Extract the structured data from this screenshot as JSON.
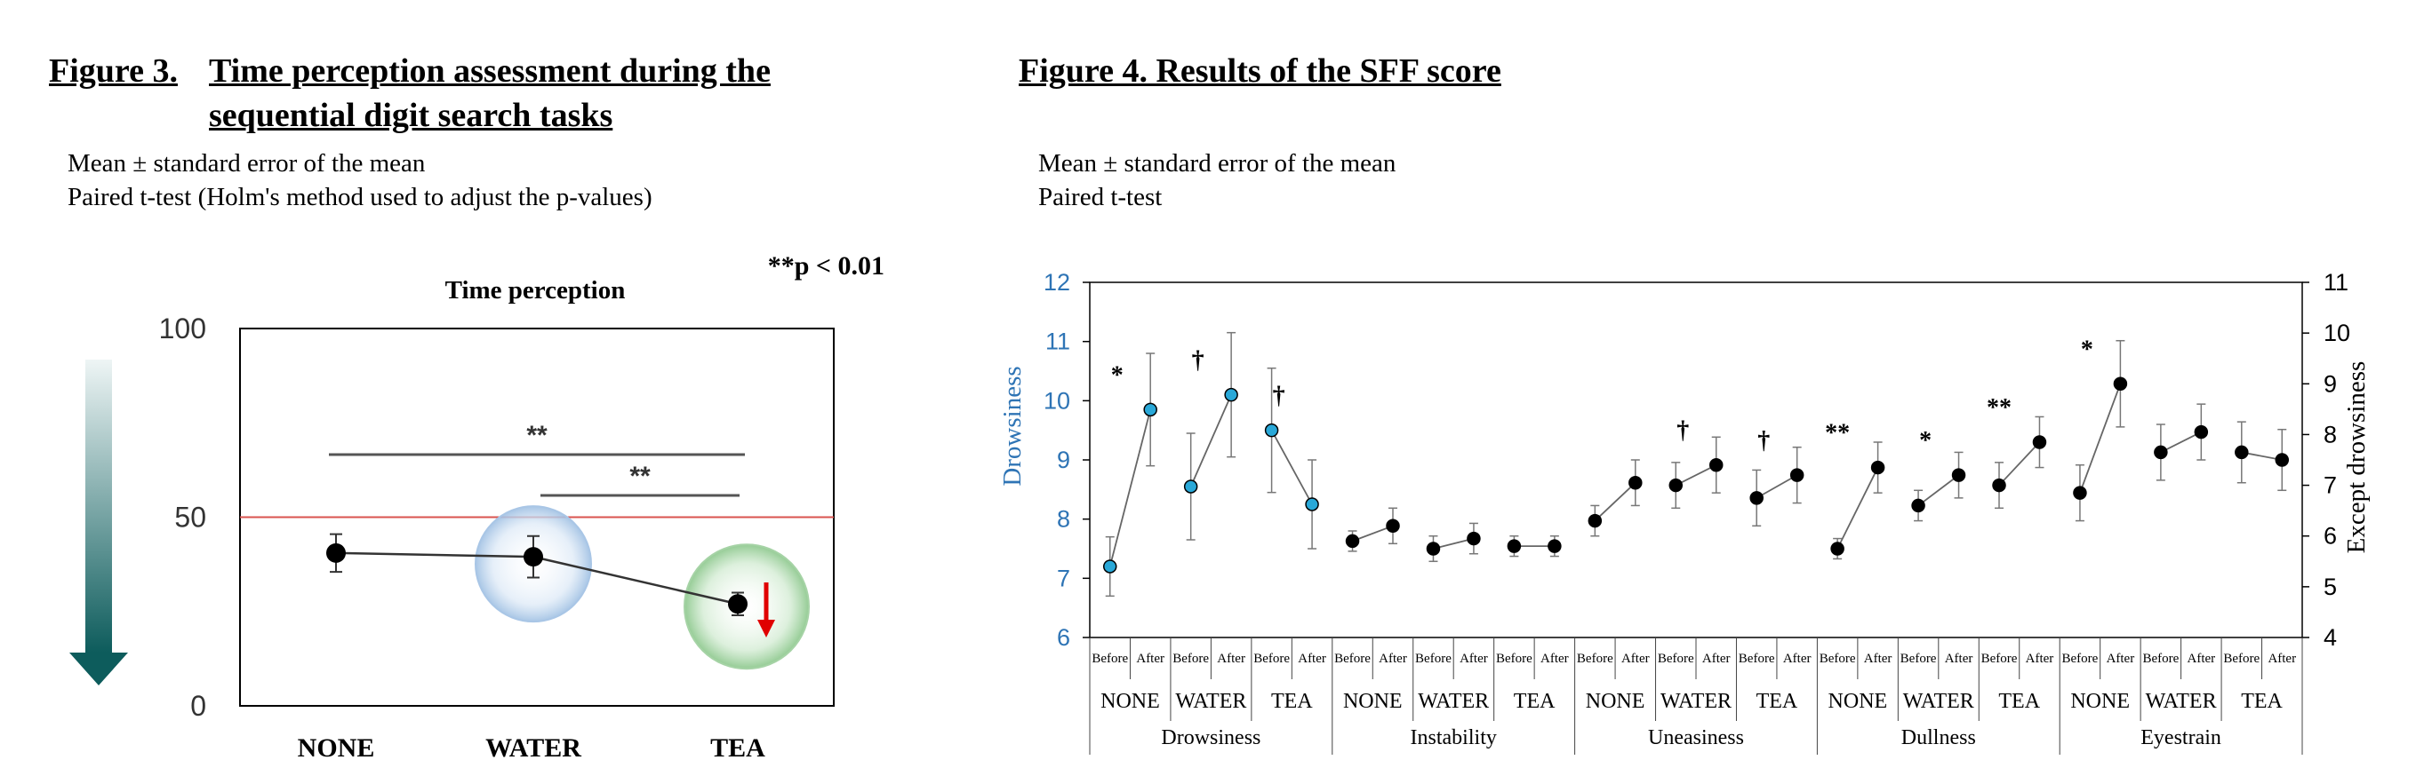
{
  "figure3": {
    "title_line1": "Figure 3.",
    "title_line1b": "Time perception assessment during the",
    "title_line2": "sequential digit search tasks",
    "note1": "Mean ± standard error of the mean",
    "note2": "Paired t-test (Holm's method used to adjust the p-values)",
    "pvalue_note": "**p < 0.01"
  },
  "figure4": {
    "title": "Figure 4. Results of the SFF score",
    "note1": "Mean ± standard error of the mean",
    "note2": "Paired t-test"
  },
  "colors": {
    "left_axis_blue": "#2e74b5",
    "ref_line_red": "#d9534f",
    "arrow_red": "#e00000",
    "arrow_teal_dark": "#0d5c5c",
    "arrow_teal_light": "#eef5f5",
    "circle_blue": "#c8dcf0",
    "circle_green": "#c9e6c9",
    "marker_cyan": "#29a8d8"
  },
  "chart_data": [
    {
      "type": "line",
      "title": "Time perception",
      "categories": [
        "NONE",
        "WATER",
        "TEA"
      ],
      "values": [
        40.5,
        39.5,
        27
      ],
      "error": [
        5,
        5.5,
        3
      ],
      "ylim": [
        0,
        100
      ],
      "yticks": [
        "0",
        "50",
        "100"
      ],
      "reference_line": 50,
      "significance": [
        {
          "from": "NONE",
          "to": "TEA",
          "label": "**"
        },
        {
          "from": "WATER",
          "to": "TEA",
          "label": "**"
        }
      ],
      "xlabel": "",
      "ylabel": ""
    },
    {
      "type": "line",
      "left_axis_label": "Drowsiness",
      "right_axis_label": "Except drowsiness",
      "left_ylim": [
        6,
        12
      ],
      "right_ylim": [
        4,
        11
      ],
      "left_yticks": [
        "6",
        "7",
        "8",
        "9",
        "10",
        "11",
        "12"
      ],
      "right_yticks": [
        "4",
        "5",
        "6",
        "7",
        "8",
        "9",
        "10",
        "11"
      ],
      "measures": [
        "Drowsiness",
        "Instability",
        "Uneasiness",
        "Dullness",
        "Eyestrain"
      ],
      "conditions": [
        "NONE",
        "WATER",
        "TEA"
      ],
      "phases": [
        "Before",
        "After"
      ],
      "series": [
        {
          "measure": "Drowsiness",
          "axis": "left",
          "groups": [
            {
              "condition": "NONE",
              "before": 7.2,
              "after": 9.85,
              "before_err": 0.5,
              "after_err": 0.95,
              "sig": "*"
            },
            {
              "condition": "WATER",
              "before": 8.55,
              "after": 10.1,
              "before_err": 0.9,
              "after_err": 1.05,
              "sig": "†"
            },
            {
              "condition": "TEA",
              "before": 9.5,
              "after": 8.25,
              "before_err": 1.05,
              "after_err": 0.75,
              "sig": "†"
            }
          ]
        },
        {
          "measure": "Instability",
          "axis": "right",
          "groups": [
            {
              "condition": "NONE",
              "before": 5.9,
              "after": 6.2,
              "before_err": 0.2,
              "after_err": 0.35,
              "sig": ""
            },
            {
              "condition": "WATER",
              "before": 5.75,
              "after": 5.95,
              "before_err": 0.25,
              "after_err": 0.3,
              "sig": ""
            },
            {
              "condition": "TEA",
              "before": 5.8,
              "after": 5.8,
              "before_err": 0.2,
              "after_err": 0.2,
              "sig": ""
            }
          ]
        },
        {
          "measure": "Uneasiness",
          "axis": "right",
          "groups": [
            {
              "condition": "NONE",
              "before": 6.3,
              "after": 7.05,
              "before_err": 0.3,
              "after_err": 0.45,
              "sig": ""
            },
            {
              "condition": "WATER",
              "before": 7.0,
              "after": 7.4,
              "before_err": 0.45,
              "after_err": 0.55,
              "sig": "†"
            },
            {
              "condition": "TEA",
              "before": 6.75,
              "after": 7.2,
              "before_err": 0.55,
              "after_err": 0.55,
              "sig": "†"
            }
          ]
        },
        {
          "measure": "Dullness",
          "axis": "right",
          "groups": [
            {
              "condition": "NONE",
              "before": 5.75,
              "after": 7.35,
              "before_err": 0.2,
              "after_err": 0.5,
              "sig": "**"
            },
            {
              "condition": "WATER",
              "before": 6.6,
              "after": 7.2,
              "before_err": 0.3,
              "after_err": 0.45,
              "sig": "*"
            },
            {
              "condition": "TEA",
              "before": 7.0,
              "after": 7.85,
              "before_err": 0.45,
              "after_err": 0.5,
              "sig": "**"
            }
          ]
        },
        {
          "measure": "Eyestrain",
          "axis": "right",
          "groups": [
            {
              "condition": "NONE",
              "before": 6.85,
              "after": 9.0,
              "before_err": 0.55,
              "after_err": 0.85,
              "sig": "*"
            },
            {
              "condition": "WATER",
              "before": 7.65,
              "after": 8.05,
              "before_err": 0.55,
              "after_err": 0.55,
              "sig": ""
            },
            {
              "condition": "TEA",
              "before": 7.65,
              "after": 7.5,
              "before_err": 0.6,
              "after_err": 0.6,
              "sig": ""
            }
          ]
        }
      ]
    }
  ]
}
